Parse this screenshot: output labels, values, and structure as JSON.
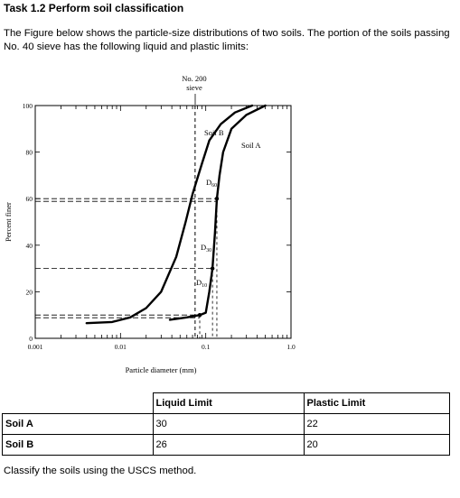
{
  "task_title": "Task 1.2 Perform soil classification",
  "intro": "The Figure below shows the particle-size distributions of two soils. The portion of the soils passing No. 40 sieve has the following liquid and plastic limits:",
  "figure": {
    "sieve_label_line1": "No. 200",
    "sieve_label_line2": "sieve",
    "ylabel": "Percent finer",
    "xlabel": "Particle diameter (mm)",
    "y_ticks": [
      "0",
      "20",
      "40",
      "60",
      "80",
      "100"
    ],
    "x_ticks": [
      "0.001",
      "0.01",
      "0.1",
      "1.0"
    ],
    "soil_b_label": "Soil B",
    "soil_a_label": "Soil A",
    "d60_main": "D",
    "d60_sub": "60",
    "d30_main": "D",
    "d30_sub": "30",
    "d10_main": "D",
    "d10_sub": "10"
  },
  "chart_data": {
    "type": "line",
    "x_scale": "log",
    "xlim": [
      0.001,
      1.0
    ],
    "ylim": [
      0,
      100
    ],
    "xlabel": "Particle diameter (mm)",
    "ylabel": "Percent finer",
    "series": [
      {
        "name": "Soil A",
        "x": [
          0.038,
          0.06,
          0.085,
          0.1,
          0.11,
          0.12,
          0.128,
          0.135,
          0.145,
          0.16,
          0.2,
          0.3,
          0.5
        ],
        "y": [
          8,
          9,
          10,
          11,
          20,
          30,
          45,
          60,
          70,
          80,
          90,
          96,
          100
        ]
      },
      {
        "name": "Soil B",
        "x": [
          0.004,
          0.008,
          0.013,
          0.02,
          0.03,
          0.045,
          0.058,
          0.07,
          0.09,
          0.11,
          0.15,
          0.22,
          0.35
        ],
        "y": [
          6.5,
          7,
          9,
          13,
          20,
          35,
          50,
          62,
          75,
          85,
          92,
          97,
          100
        ]
      }
    ],
    "reference_lines": {
      "no_200_sieve_mm": 0.075,
      "horizontal_levels": [
        10,
        30,
        60
      ]
    }
  },
  "table": {
    "headers": [
      "",
      "Liquid Limit",
      "Plastic Limit"
    ],
    "rows": [
      {
        "soil": "Soil A",
        "ll": "30",
        "pl": "22"
      },
      {
        "soil": "Soil B",
        "ll": "26",
        "pl": "20"
      }
    ]
  },
  "closing": "Classify the soils using the USCS method."
}
